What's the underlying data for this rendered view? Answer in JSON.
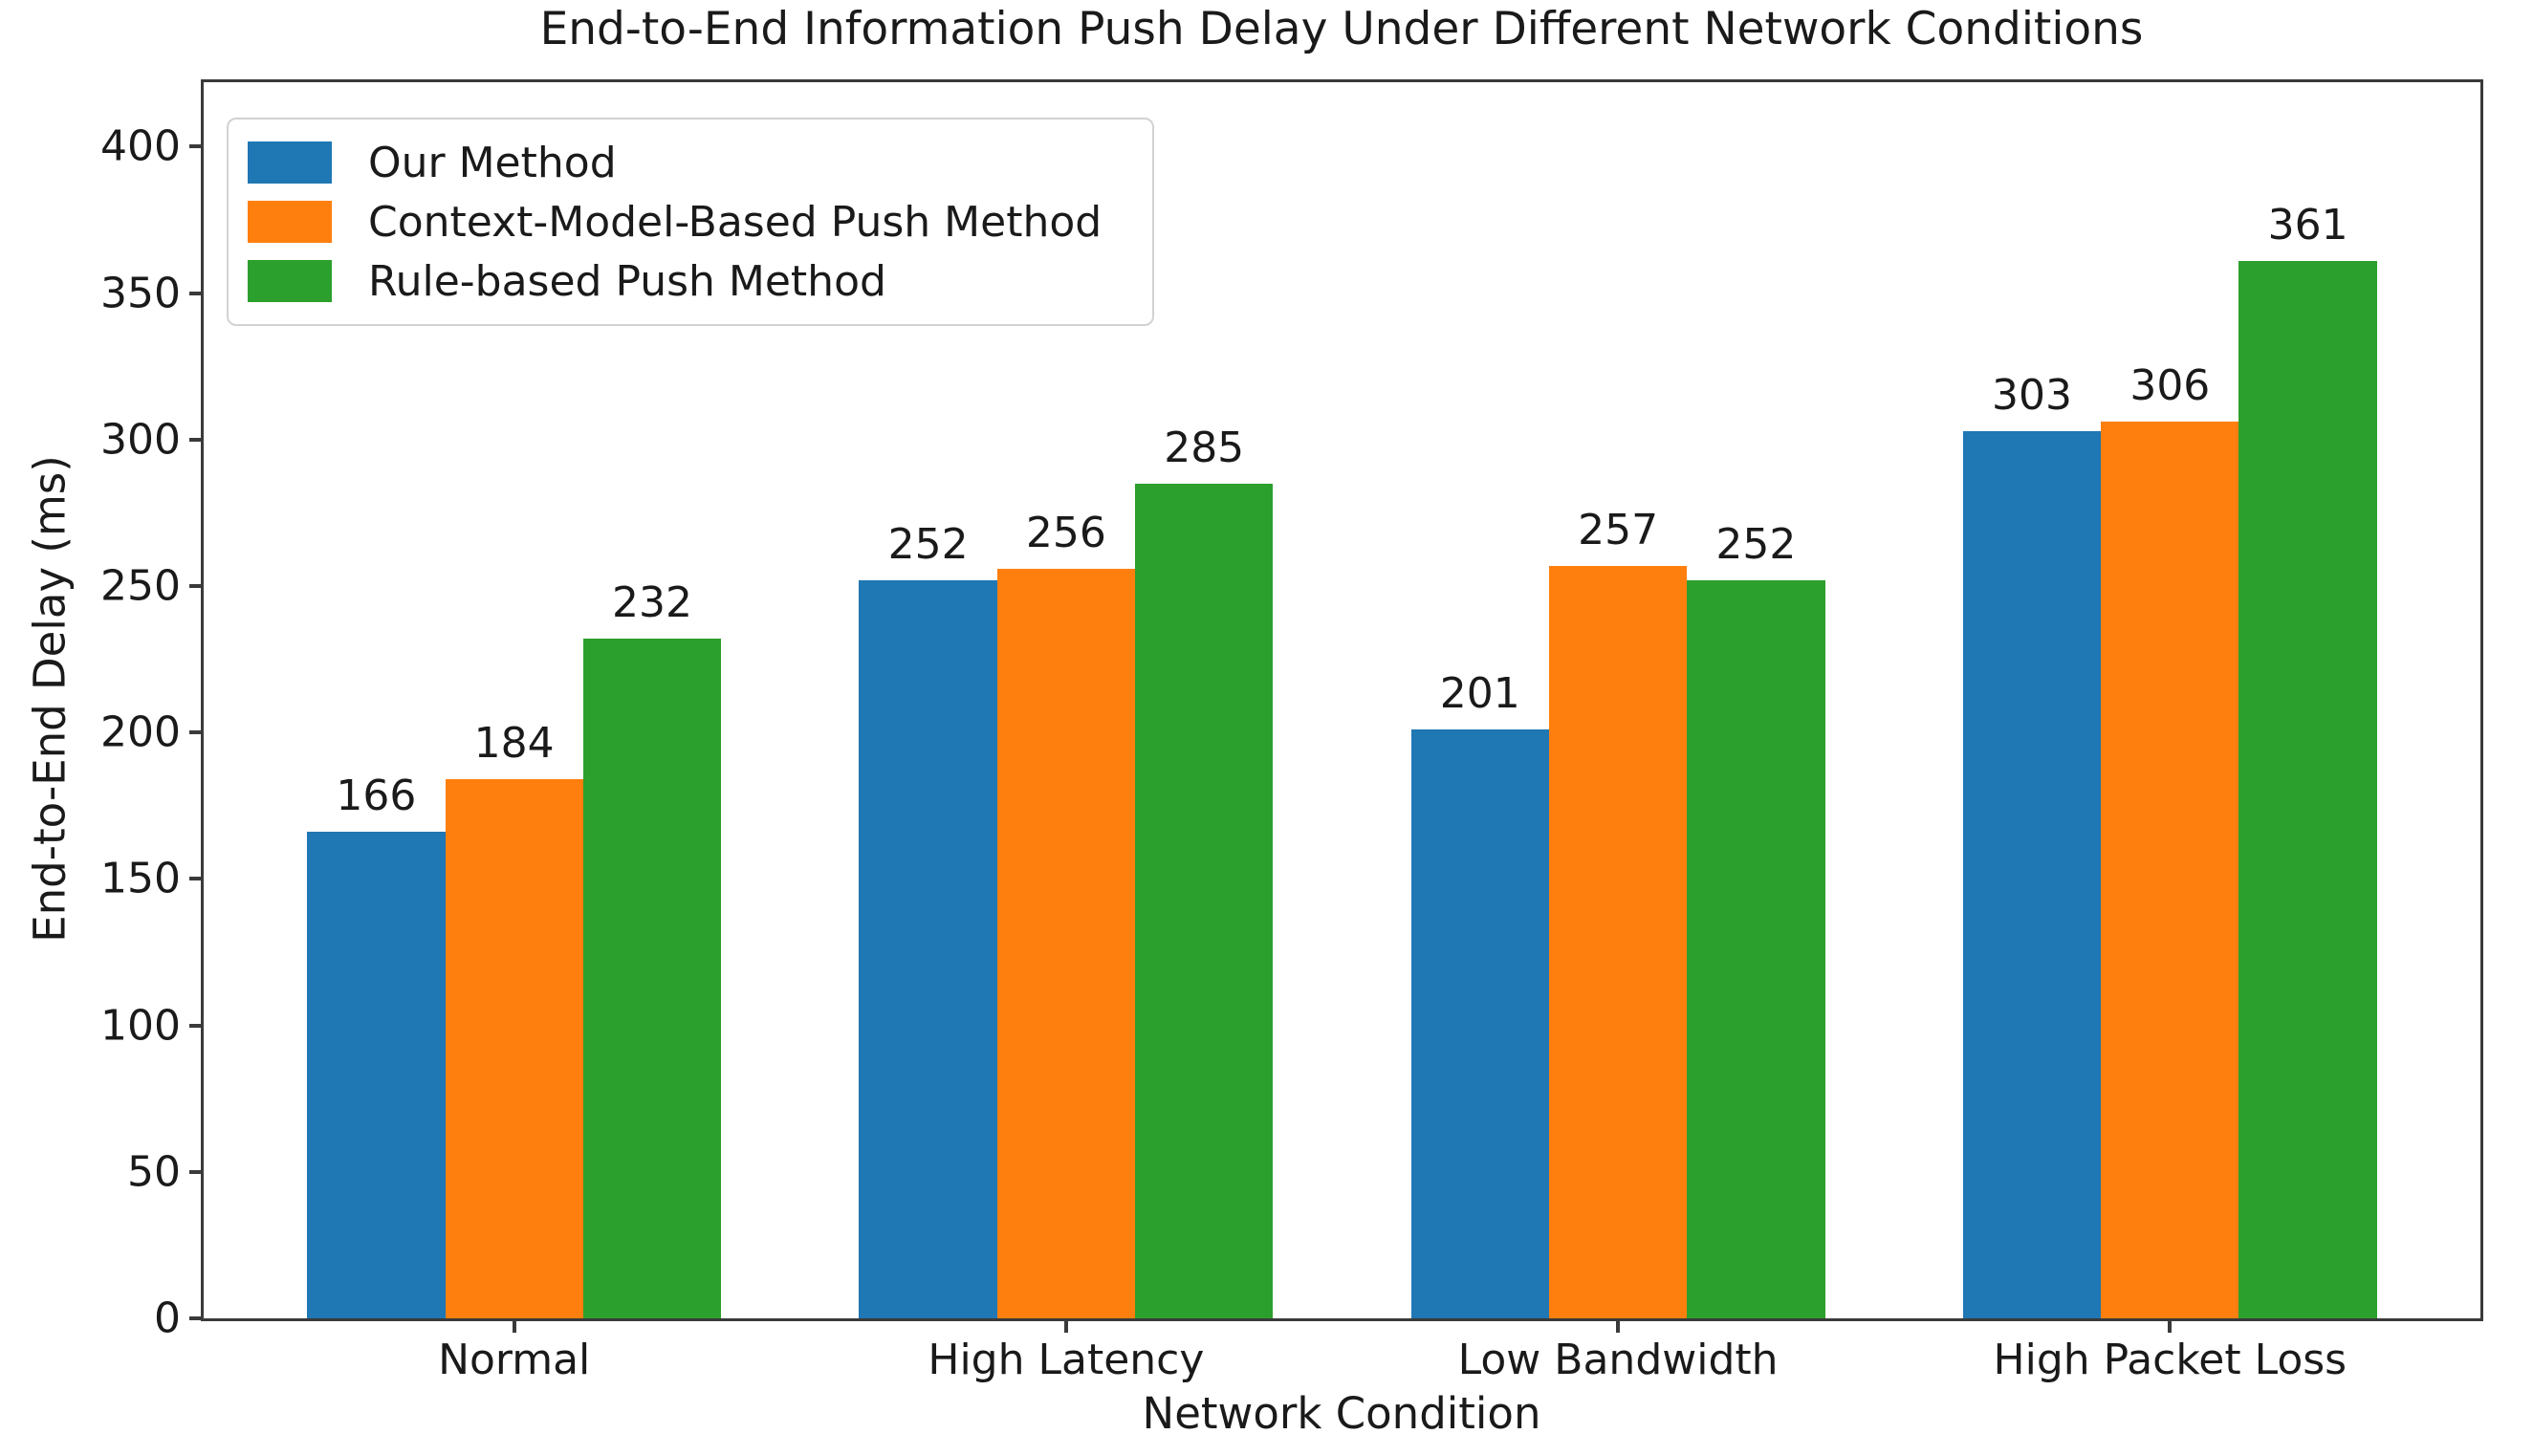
{
  "chart_data": {
    "type": "bar",
    "title": "End-to-End Information Push Delay Under Different Network Conditions",
    "xlabel": "Network Condition",
    "ylabel": "End-to-End Delay (ms)",
    "categories": [
      "Normal",
      "High Latency",
      "Low Bandwidth",
      "High Packet Loss"
    ],
    "series": [
      {
        "name": "Our Method",
        "color": "#1f77b4",
        "values": [
          166,
          252,
          201,
          303
        ]
      },
      {
        "name": "Context-Model-Based Push Method",
        "color": "#ff7f0e",
        "values": [
          184,
          256,
          257,
          306
        ]
      },
      {
        "name": "Rule-based Push Method",
        "color": "#2ca02c",
        "values": [
          232,
          285,
          252,
          361
        ]
      }
    ],
    "yticks": [
      0,
      50,
      100,
      150,
      200,
      250,
      300,
      350,
      400
    ],
    "ylim": [
      0,
      422
    ],
    "bar_value_labels": true,
    "grid": false,
    "legend_position": "upper-left",
    "axis_color": "#3a3a3a",
    "text_color": "#1a1a1a"
  }
}
